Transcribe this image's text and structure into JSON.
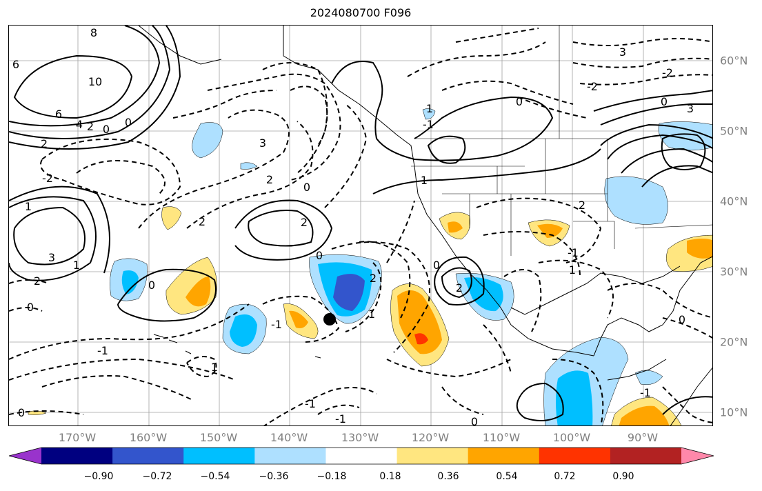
{
  "title": "2024080700 F096",
  "lat_labels": [
    "60°N",
    "50°N",
    "40°N",
    "30°N",
    "20°N",
    "10°N"
  ],
  "lon_labels": [
    "170°W",
    "160°W",
    "150°W",
    "140°W",
    "130°W",
    "120°W",
    "110°W",
    "100°W",
    "90°W"
  ],
  "colorbar": {
    "colors": [
      "#9933cc",
      "#000080",
      "#3355cc",
      "#00bfff",
      "#aee0ff",
      "#ffffff",
      "#ffe680",
      "#ffa500",
      "#ff3300",
      "#b22222",
      "#ff88aa"
    ],
    "tick_labels": [
      "−0.90",
      "−0.72",
      "−0.54",
      "−0.36",
      "−0.18",
      "0.18",
      "0.36",
      "0.54",
      "0.72",
      "0.90"
    ]
  },
  "contour_labels": [
    "8",
    "6",
    "6",
    "10",
    "4",
    "2",
    "0",
    "0",
    "2",
    "1",
    "3",
    "3",
    "1",
    "2",
    "0",
    "-2",
    "2",
    "0",
    "-1",
    "3",
    "2",
    "-2",
    "0",
    "2",
    "1",
    "-1",
    "1",
    "2",
    "0",
    "1",
    "0",
    "-1",
    "2",
    "-1",
    "-2",
    "3",
    "0",
    "-1",
    "0",
    "0",
    "2",
    "1",
    "0",
    "-1",
    "0",
    "1",
    "-1"
  ],
  "marker": "black-dot"
}
